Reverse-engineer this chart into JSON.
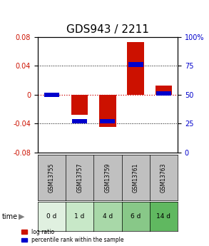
{
  "title": "GDS943 / 2211",
  "samples": [
    "GSM13755",
    "GSM13757",
    "GSM13759",
    "GSM13761",
    "GSM13763"
  ],
  "time_labels": [
    "0 d",
    "1 d",
    "4 d",
    "6 d",
    "14 d"
  ],
  "log_ratios": [
    0.0,
    -0.028,
    -0.045,
    0.073,
    0.013
  ],
  "percentile_ranks": [
    50,
    27,
    27,
    76,
    51
  ],
  "bar_width": 0.6,
  "ylim_left": [
    -0.08,
    0.08
  ],
  "ylim_right": [
    0,
    100
  ],
  "yticks_left": [
    -0.08,
    -0.04,
    0,
    0.04,
    0.08
  ],
  "yticks_right": [
    0,
    25,
    50,
    75,
    100
  ],
  "bar_color_red": "#cc1100",
  "bar_color_blue": "#0000cc",
  "grid_color": "#000000",
  "zero_line_color": "#cc0000",
  "title_fontsize": 11,
  "tick_fontsize": 7,
  "label_fontsize": 7,
  "gsm_bg_color": "#c0c0c0",
  "time_bg_colors": [
    "#e0f0e0",
    "#c8e8c8",
    "#a8d8a8",
    "#88c888",
    "#60b860"
  ],
  "plot_bg_color": "#ffffff",
  "legend_label_red": "log ratio",
  "legend_label_blue": "percentile rank within the sample"
}
